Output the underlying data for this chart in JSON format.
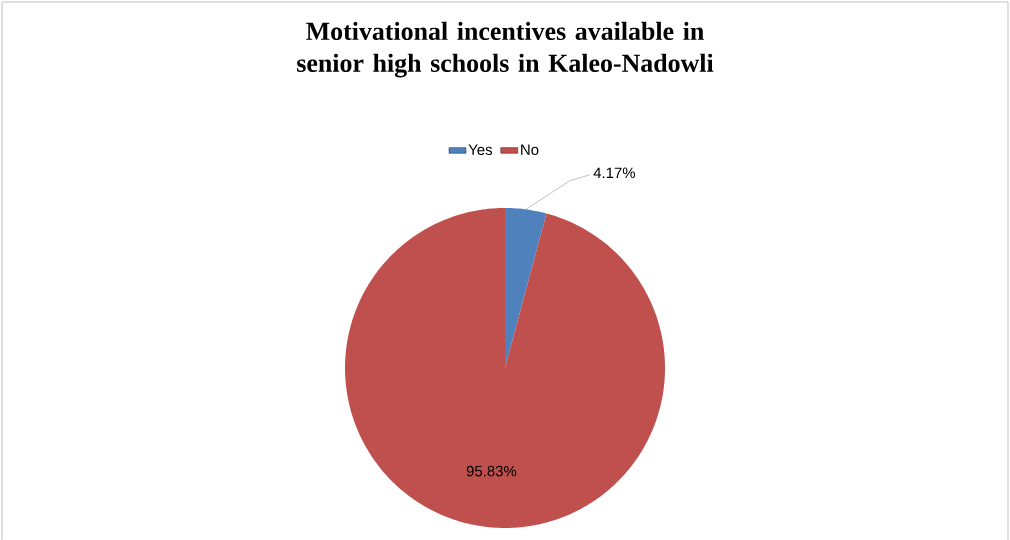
{
  "chart_data": {
    "type": "pie",
    "title": "Motivational incentives available in senior high schools in Kaleo-Nadowli",
    "categories": [
      "Yes",
      "No"
    ],
    "values": [
      4.17,
      95.83
    ],
    "colors": [
      "#4f81bd",
      "#c0504d"
    ],
    "value_labels": [
      "4.17%",
      "95.83%"
    ],
    "legend": "top"
  }
}
